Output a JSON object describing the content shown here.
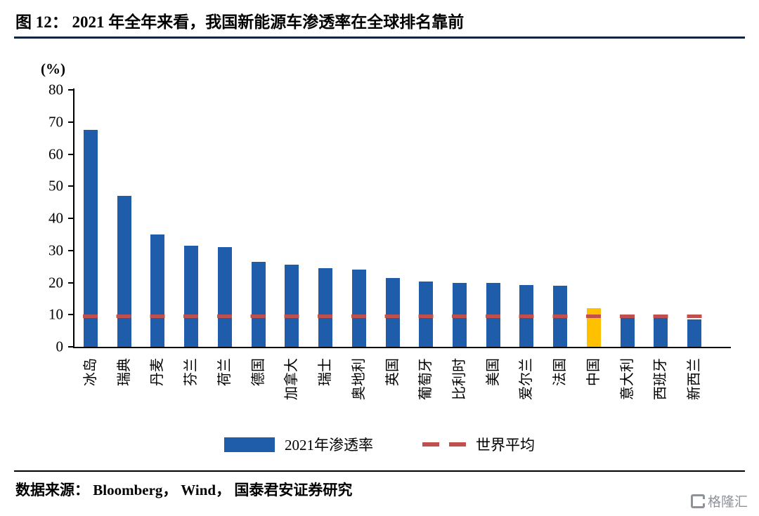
{
  "title": "图 12：  2021 年全年来看，我国新能源车渗透率在全球排名靠前",
  "footer": {
    "source": "数据来源：  Bloomberg，  Wind，  国泰君安证券研究",
    "watermark": "格隆汇"
  },
  "chart_data": {
    "type": "bar",
    "title": "2021 年全年来看，我国新能源车渗透率在全球排名靠前",
    "unit_label": "(%)",
    "ylim": [
      0,
      80
    ],
    "yticks": [
      0,
      10,
      20,
      30,
      40,
      50,
      60,
      70,
      80
    ],
    "categories": [
      "冰岛",
      "瑞典",
      "丹麦",
      "芬兰",
      "荷兰",
      "德国",
      "加拿大",
      "瑞士",
      "奥地利",
      "英国",
      "葡萄牙",
      "比利时",
      "美国",
      "爱尔兰",
      "法国",
      "中国",
      "意大利",
      "西班牙",
      "新西兰"
    ],
    "values": [
      67.5,
      47,
      35,
      31.5,
      31,
      26.5,
      25.5,
      24.5,
      24,
      21.5,
      20.3,
      20,
      19.8,
      19.2,
      19,
      12,
      9.5,
      9,
      8.5
    ],
    "highlight_category": "中国",
    "bar_color": "#1f5ca9",
    "highlight_color": "#ffc000",
    "world_average": 9.5,
    "average_color": "#c0504d",
    "grid": false,
    "legend_position": "bottom",
    "legend": [
      {
        "label": "2021年渗透率",
        "type": "bar"
      },
      {
        "label": "世界平均",
        "type": "dashed-line"
      }
    ]
  }
}
